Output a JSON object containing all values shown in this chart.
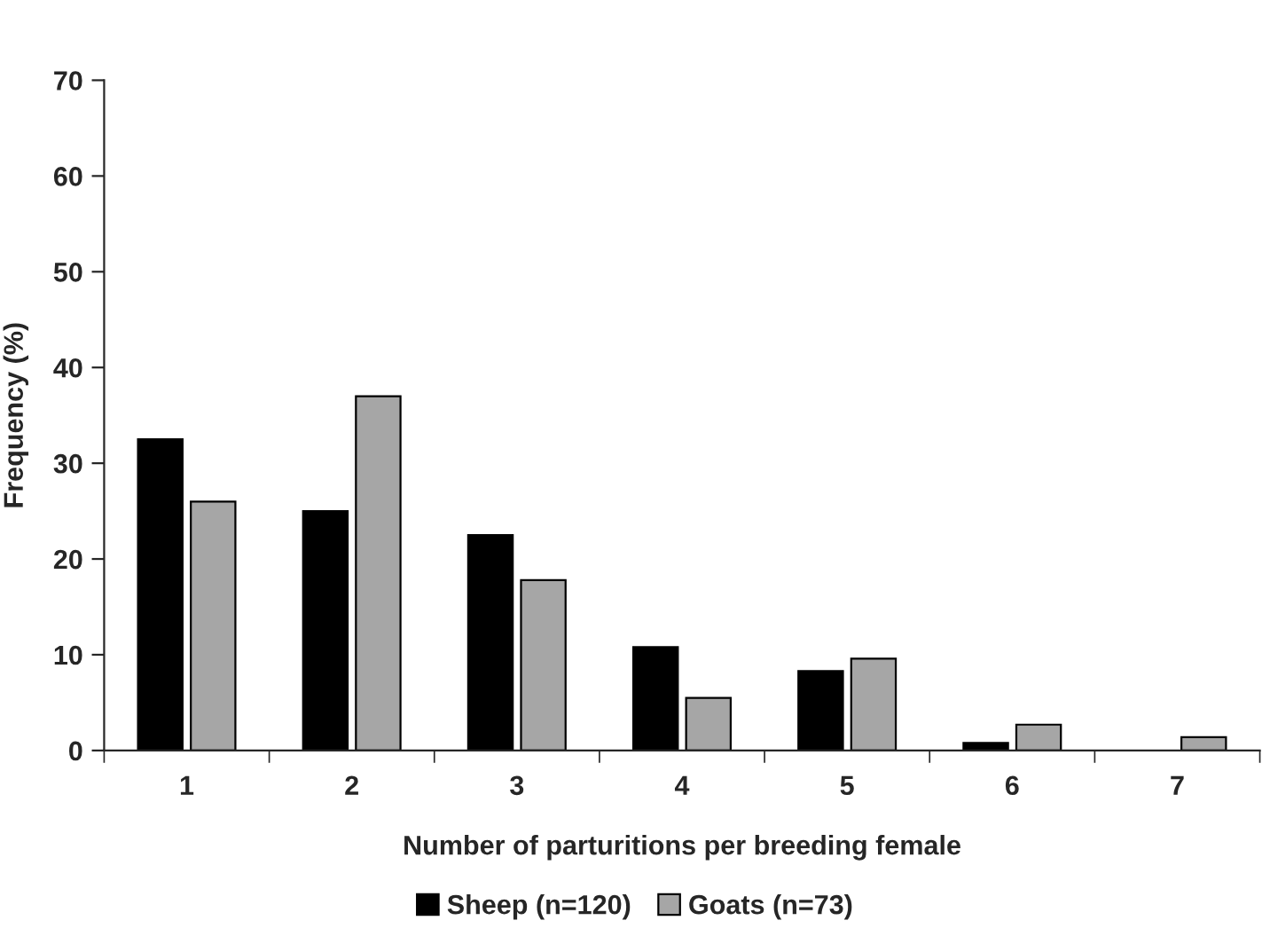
{
  "chart_data": {
    "type": "bar",
    "xlabel": "Number of parturitions per breeding female",
    "ylabel": "Frequency (%)",
    "categories": [
      "1",
      "2",
      "3",
      "4",
      "5",
      "6",
      "7"
    ],
    "series": [
      {
        "name": "Sheep (n=120)",
        "color": "#000000",
        "values": [
          32.5,
          25,
          22.5,
          10.8,
          8.3,
          0.8,
          null
        ]
      },
      {
        "name": "Goats (n=73)",
        "color": "#a6a6a6",
        "values": [
          26,
          37,
          17.8,
          5.5,
          9.6,
          2.7,
          1.4
        ]
      }
    ],
    "ylim": [
      0,
      70
    ],
    "yticks": [
      0,
      10,
      20,
      30,
      40,
      50,
      60,
      70
    ],
    "grid": false,
    "legend": "bottom"
  }
}
